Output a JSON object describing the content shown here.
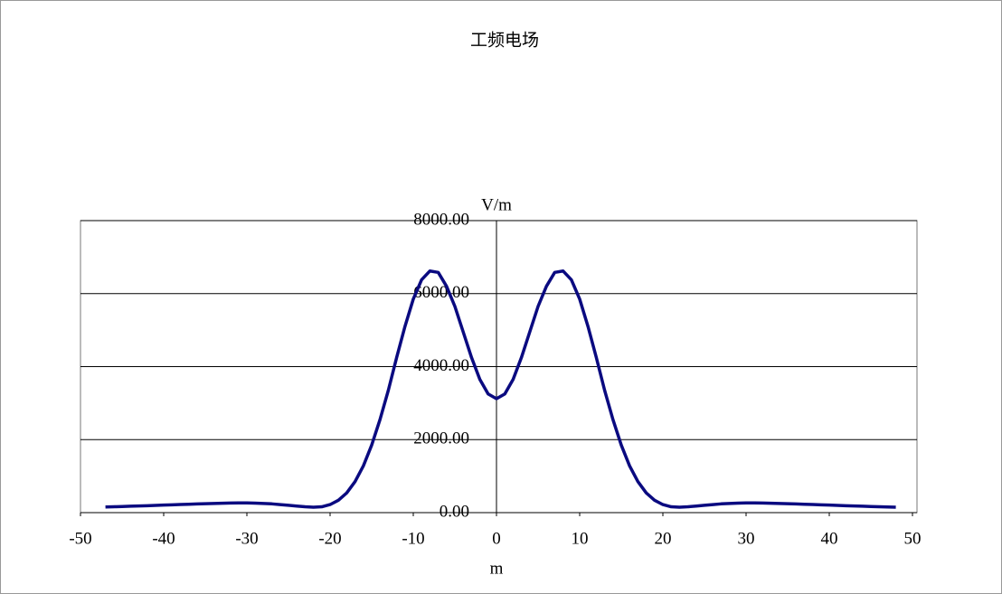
{
  "chart_data": {
    "type": "line",
    "title": "工频电场",
    "x_label": "m",
    "y_label": "V/m",
    "x": [
      -47,
      -46,
      -45,
      -44,
      -43,
      -42,
      -41,
      -40,
      -39,
      -38,
      -37,
      -36,
      -35,
      -34,
      -33,
      -32,
      -31,
      -30,
      -29,
      -28,
      -27,
      -26,
      -25,
      -24,
      -23,
      -22,
      -21,
      -20,
      -19,
      -18,
      -17,
      -16,
      -15,
      -14,
      -13,
      -12,
      -11,
      -10,
      -9,
      -8,
      -7,
      -6,
      -5,
      -4,
      -3,
      -2,
      -1,
      0,
      1,
      2,
      3,
      4,
      5,
      6,
      7,
      8,
      9,
      10,
      11,
      12,
      13,
      14,
      15,
      16,
      17,
      18,
      19,
      20,
      21,
      22,
      23,
      24,
      25,
      26,
      27,
      28,
      29,
      30,
      31,
      32,
      33,
      34,
      35,
      36,
      37,
      38,
      39,
      40,
      41,
      42,
      43,
      44,
      45,
      46,
      47,
      48
    ],
    "series": [
      {
        "name": "V/m",
        "color": "#0a0a80",
        "values": [
          155,
          161,
          168,
          175,
          182,
          190,
          198,
          206,
          214,
          222,
          230,
          238,
          245,
          252,
          258,
          262,
          265,
          265,
          260,
          250,
          240,
          220,
          200,
          180,
          160,
          150,
          160,
          220,
          340,
          540,
          850,
          1280,
          1850,
          2550,
          3350,
          4250,
          5100,
          5850,
          6380,
          6620,
          6580,
          6200,
          5650,
          4950,
          4250,
          3650,
          3250,
          3120,
          3250,
          3650,
          4250,
          4950,
          5650,
          6200,
          6580,
          6620,
          6380,
          5850,
          5100,
          4250,
          3350,
          2550,
          1850,
          1280,
          850,
          540,
          340,
          220,
          160,
          150,
          160,
          180,
          200,
          220,
          240,
          250,
          260,
          265,
          265,
          262,
          258,
          252,
          245,
          238,
          230,
          222,
          214,
          206,
          198,
          190,
          182,
          175,
          168,
          161,
          155,
          150
        ]
      }
    ],
    "xlim": [
      -50,
      50
    ],
    "xticks": [
      -50,
      -40,
      -30,
      -20,
      -10,
      0,
      10,
      20,
      30,
      40,
      50
    ],
    "ylim": [
      0,
      8000
    ],
    "yticks": [
      {
        "value": 0,
        "label": "0.00"
      },
      {
        "value": 2000,
        "label": "2000.00"
      },
      {
        "value": 4000,
        "label": "4000.00"
      },
      {
        "value": 6000,
        "label": "6000.00"
      },
      {
        "value": 8000,
        "label": "8000.00"
      }
    ],
    "grid": true
  }
}
